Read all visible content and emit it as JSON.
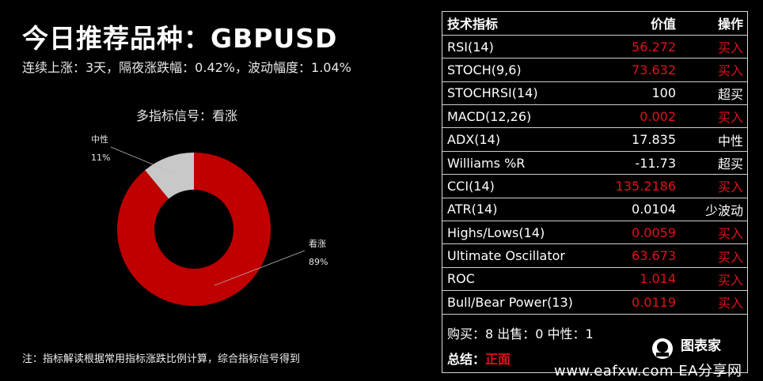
{
  "title": "今日推荐品种：GBPUSD",
  "subtitle": "连续上涨：3天，隔夜涨跌幅：0.42%，波动幅度：1.04%",
  "footnote": "注：指标解读根据常用指标涨跌比例计算，综合指标信号得到",
  "chart_data": {
    "type": "pie",
    "title": "多指标信号：看涨",
    "style": "donut",
    "slices": [
      {
        "label": "看涨",
        "value": 89,
        "display": "89%",
        "color": "#c00000"
      },
      {
        "label": "中性",
        "value": 11,
        "display": "11%",
        "color": "#c8c8c8"
      }
    ]
  },
  "table": {
    "headers": {
      "name": "技术指标",
      "value": "价值",
      "action": "操作"
    },
    "rows": [
      {
        "name": "RSI(14)",
        "value": "56.272",
        "action": "买入",
        "color": "#e0121b"
      },
      {
        "name": "STOCH(9,6)",
        "value": "73.632",
        "action": "买入",
        "color": "#e0121b"
      },
      {
        "name": "STOCHRSI(14)",
        "value": "100",
        "action": "超买",
        "color": "#ffffff"
      },
      {
        "name": "MACD(12,26)",
        "value": "0.002",
        "action": "买入",
        "color": "#e0121b"
      },
      {
        "name": "ADX(14)",
        "value": "17.835",
        "action": "中性",
        "color": "#ffffff"
      },
      {
        "name": "Williams %R",
        "value": "-11.73",
        "action": "超买",
        "color": "#ffffff"
      },
      {
        "name": "CCI(14)",
        "value": "135.2186",
        "action": "买入",
        "color": "#e0121b"
      },
      {
        "name": "ATR(14)",
        "value": "0.0104",
        "action": "少波动",
        "color": "#ffffff"
      },
      {
        "name": "Highs/Lows(14)",
        "value": "0.0059",
        "action": "买入",
        "color": "#e0121b"
      },
      {
        "name": "Ultimate Oscillator",
        "value": "63.673",
        "action": "买入",
        "color": "#e0121b"
      },
      {
        "name": "ROC",
        "value": "1.014",
        "action": "买入",
        "color": "#e0121b"
      },
      {
        "name": "Bull/Bear Power(13)",
        "value": "0.0119",
        "action": "买入",
        "color": "#e0121b"
      }
    ]
  },
  "summary": {
    "counts": "购买：8 出售：0 中性：1",
    "conclusion_label": "总结：",
    "conclusion_value": "正面",
    "conclusion_color": "#e0121b"
  },
  "branding": {
    "logo_text": "图表家",
    "watermark": "www.eafxw.com  EA分享网"
  }
}
